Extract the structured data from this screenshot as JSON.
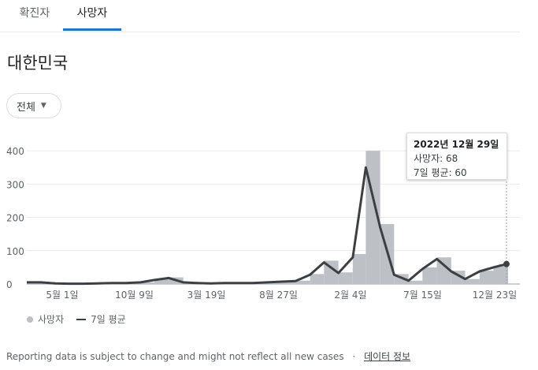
{
  "tabs": [
    {
      "label": "확진자",
      "active": false
    },
    {
      "label": "사망자",
      "active": true
    }
  ],
  "region_title": "대한민국",
  "filter": {
    "selected": "전체"
  },
  "tooltip": {
    "date": "2022년 12월 29일",
    "line1": "사망자: 68",
    "line2": "7일 평균: 60"
  },
  "legend": {
    "bars": "사망자",
    "line": "7일 평균"
  },
  "footer": {
    "notice": "Reporting data is subject to change and might not reflect all new cases",
    "separator": "·",
    "link": "데이터 정보"
  },
  "colors": {
    "bars": "#bdc1c6",
    "line": "#3c4043",
    "tab_accent": "#1a73e8"
  },
  "chart_data": {
    "type": "bar",
    "x": [
      "2020-03-01",
      "2020-04-01",
      "2020-05-01",
      "2020-06-01",
      "2020-07-01",
      "2020-08-01",
      "2020-09-01",
      "2020-10-01",
      "2020-11-01",
      "2020-12-01",
      "2021-01-01",
      "2021-02-01",
      "2021-03-01",
      "2021-04-01",
      "2021-05-01",
      "2021-06-01",
      "2021-07-01",
      "2021-08-01",
      "2021-09-01",
      "2021-10-01",
      "2021-11-01",
      "2021-12-01",
      "2022-01-01",
      "2022-02-01",
      "2022-03-01",
      "2022-04-01",
      "2022-05-01",
      "2022-06-01",
      "2022-07-01",
      "2022-08-01",
      "2022-09-01",
      "2022-10-01",
      "2022-11-01",
      "2022-12-01",
      "2022-12-29"
    ],
    "series": [
      {
        "name": "사망자",
        "values": [
          5,
          6,
          3,
          1,
          1,
          2,
          3,
          4,
          5,
          15,
          20,
          5,
          3,
          3,
          3,
          3,
          3,
          6,
          8,
          10,
          30,
          70,
          35,
          90,
          400,
          180,
          30,
          10,
          50,
          80,
          40,
          15,
          40,
          55,
          68
        ]
      },
      {
        "name": "7일 평균",
        "values": [
          5,
          5,
          2,
          1,
          1,
          2,
          3,
          3,
          5,
          12,
          18,
          5,
          3,
          2,
          3,
          3,
          3,
          5,
          7,
          9,
          28,
          65,
          33,
          80,
          350,
          170,
          28,
          10,
          45,
          75,
          38,
          15,
          38,
          50,
          60
        ]
      }
    ],
    "xticks": [
      "5월 1일",
      "10월 9일",
      "3월 19일",
      "8월 27일",
      "2월 4일",
      "7월 15일",
      "12월 23일"
    ],
    "yticks": [
      "0",
      "100",
      "200",
      "300",
      "400"
    ],
    "ylim": [
      0,
      450
    ],
    "grid": true,
    "legend_position": "bottom-left"
  }
}
